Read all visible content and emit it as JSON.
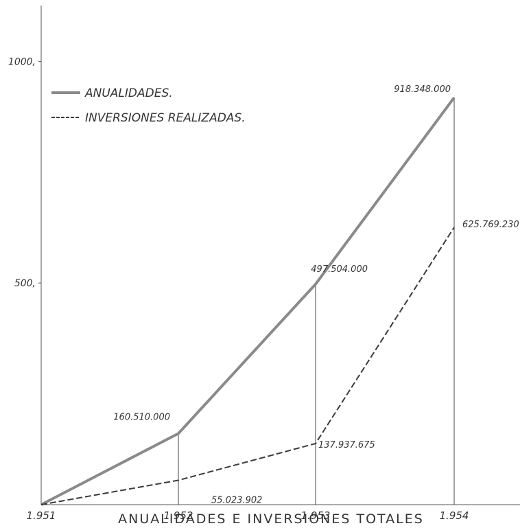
{
  "chart_data": {
    "type": "line",
    "title": "ANUALIDADES E INVERSIONES TOTALES",
    "categories": [
      "1.951",
      "1.952",
      "1.953",
      "1.954"
    ],
    "y_ticks": [
      "500,",
      "1000,"
    ],
    "ylim": [
      0,
      1000
    ],
    "grid": false,
    "legend_position": "top-left",
    "series": [
      {
        "name": "ANUALIDADES.",
        "style": "solid",
        "color": "#8a8a8a",
        "values": [
          0,
          160.51,
          497.504,
          918.348
        ],
        "labels": [
          "",
          "160.510.000",
          "497.504.000",
          "918.348.000"
        ]
      },
      {
        "name": "INVERSIONES REALIZADAS.",
        "style": "dashed",
        "color": "#3a3a3a",
        "values": [
          0,
          55.023902,
          137.937675,
          625.76923
        ],
        "labels": [
          "",
          "55.023.902",
          "137.937.675",
          "625.769.230"
        ]
      }
    ]
  }
}
